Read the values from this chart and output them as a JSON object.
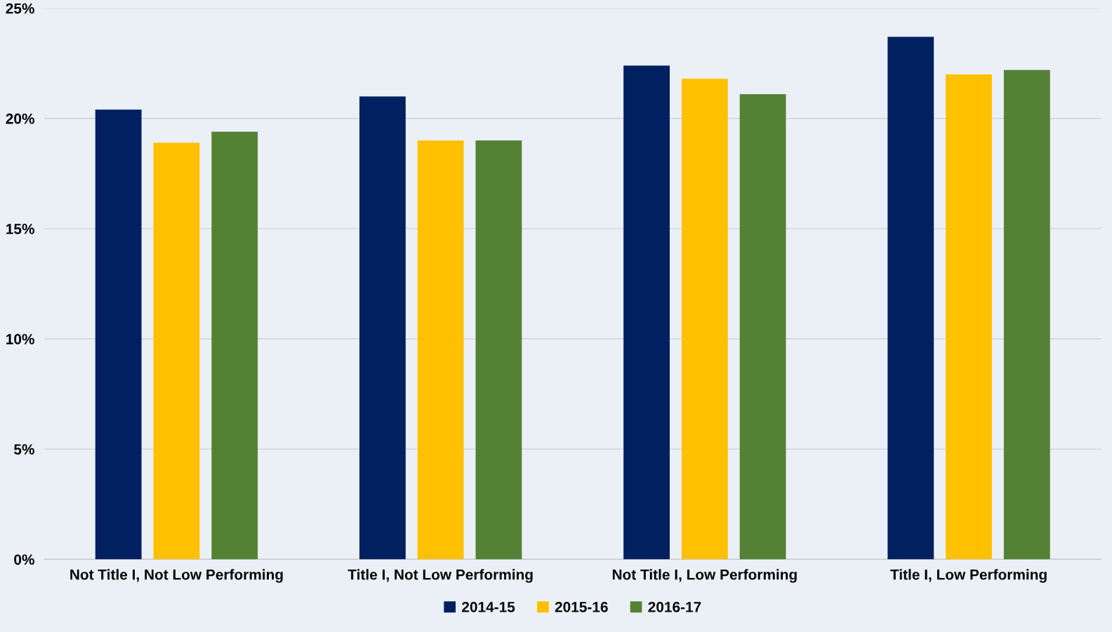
{
  "chart_data": {
    "type": "bar",
    "categories": [
      "Not Title I, Not Low Performing",
      "Title I, Not Low Performing",
      "Not Title I, Low Performing",
      "Title I, Low Performing"
    ],
    "series": [
      {
        "name": "2014-15",
        "color": "#002060",
        "values": [
          20.4,
          21.0,
          22.4,
          23.7
        ]
      },
      {
        "name": "2015-16",
        "color": "#ffc000",
        "values": [
          18.9,
          19.0,
          21.8,
          22.0
        ]
      },
      {
        "name": "2016-17",
        "color": "#548235",
        "values": [
          19.4,
          19.0,
          21.1,
          22.2
        ]
      }
    ],
    "ylim": [
      0,
      25
    ],
    "yticks": [
      {
        "value": 0,
        "label": "0%"
      },
      {
        "value": 5,
        "label": "5%"
      },
      {
        "value": 10,
        "label": "10%"
      },
      {
        "value": 15,
        "label": "15%"
      },
      {
        "value": 20,
        "label": "20%"
      },
      {
        "value": 25,
        "label": "25%"
      }
    ],
    "grid": "y",
    "legend": "bottom"
  }
}
